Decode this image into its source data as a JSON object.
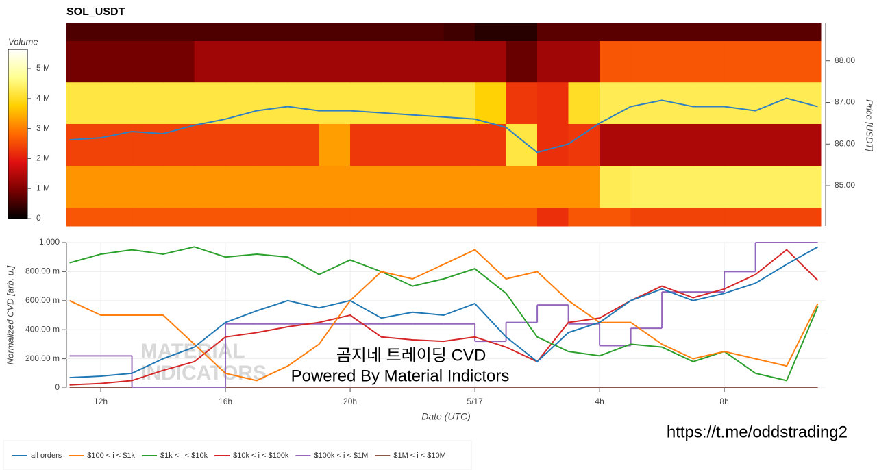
{
  "chart_data": [
    {
      "type": "heatmap",
      "title": "SOL_USDT",
      "x_bins": [
        10.9,
        12,
        13,
        14,
        15,
        16,
        17,
        18,
        19,
        20,
        21,
        22,
        23,
        24,
        25,
        26,
        27,
        28,
        29,
        30,
        31,
        32,
        33,
        34,
        35.1
      ],
      "y_bins": [
        84.03,
        84.47,
        85.48,
        86.49,
        87.49,
        88.48,
        88.9
      ],
      "values": [
        [
          2600000,
          2600000,
          2600000,
          2600000,
          2600000,
          2600000,
          2600000,
          2600000,
          2600000,
          2600000,
          2600000,
          2600000,
          2600000,
          2600000,
          2600000,
          2200000,
          2600000,
          2600000,
          2400000,
          2400000,
          2400000,
          2400000,
          2400000,
          2400000
        ],
        [
          3200000,
          3200000,
          3200000,
          3200000,
          3200000,
          3200000,
          3200000,
          3200000,
          3200000,
          3200000,
          3200000,
          3200000,
          3200000,
          3200000,
          3200000,
          3200000,
          3200000,
          4300000,
          4400000,
          4400000,
          4400000,
          4400000,
          4400000,
          4400000
        ],
        [
          2400000,
          2400000,
          2400000,
          2400000,
          2400000,
          2400000,
          2400000,
          2400000,
          3300000,
          2300000,
          2300000,
          2300000,
          2300000,
          2300000,
          4200000,
          2200000,
          2300000,
          1400000,
          1400000,
          1400000,
          1400000,
          1400000,
          1400000,
          1400000
        ],
        [
          4200000,
          4200000,
          4200000,
          4200000,
          4200000,
          4200000,
          4200000,
          4200000,
          4200000,
          4200000,
          4200000,
          4200000,
          4200000,
          3800000,
          2300000,
          2200000,
          4000000,
          4300000,
          4300000,
          4300000,
          4300000,
          4300000,
          4300000,
          4300000
        ],
        [
          900000,
          900000,
          900000,
          900000,
          1300000,
          1300000,
          1300000,
          1300000,
          1300000,
          1300000,
          1300000,
          1300000,
          1300000,
          1300000,
          800000,
          1300000,
          1300000,
          2600000,
          2600000,
          2600000,
          2600000,
          2600000,
          2600000,
          2600000
        ],
        [
          600000,
          600000,
          600000,
          600000,
          600000,
          600000,
          600000,
          600000,
          600000,
          600000,
          600000,
          600000,
          500000,
          300000,
          300000,
          700000,
          700000,
          700000,
          700000,
          700000,
          700000,
          700000,
          700000,
          700000
        ]
      ],
      "colormap": [
        "#000000",
        "#7a0000",
        "#e01010",
        "#ff6a00",
        "#ffd000",
        "#ffff90",
        "#ffffff"
      ],
      "colorbar_label": "Volume",
      "clim": [
        0,
        5640000
      ],
      "cticks": [
        0,
        {
          "value": 1000000,
          "label": "1 M"
        },
        {
          "value": 2000000,
          "label": "2 M"
        },
        {
          "value": 3000000,
          "label": "3 M"
        },
        {
          "value": 4000000,
          "label": "4 M"
        },
        {
          "value": 5000000,
          "label": "5 M"
        }
      ],
      "xlim": [
        10.9,
        35.1
      ],
      "ylim": [
        84.03,
        88.9
      ],
      "ylabel": "Price [USDT]",
      "yticks": [
        {
          "value": 85,
          "label": "85.00"
        },
        {
          "value": 86,
          "label": "86.00"
        },
        {
          "value": 87,
          "label": "87.00"
        },
        {
          "value": 88,
          "label": "88.00"
        }
      ],
      "line": {
        "color": "#2f7fc1",
        "x": [
          11,
          12,
          13,
          14,
          15,
          16,
          17,
          18,
          19,
          20,
          21,
          22,
          23,
          24,
          25,
          26,
          27,
          28,
          29,
          30,
          31,
          32,
          33,
          34,
          35
        ],
        "values": [
          86.1,
          86.15,
          86.3,
          86.25,
          86.45,
          86.6,
          86.8,
          86.9,
          86.8,
          86.8,
          86.75,
          86.7,
          86.65,
          86.6,
          86.4,
          85.8,
          86.0,
          86.5,
          86.9,
          87.05,
          86.9,
          86.9,
          86.8,
          87.1,
          86.9
        ]
      }
    },
    {
      "type": "line",
      "xlabel": "Date (UTC)",
      "ylabel": "Normalized CVD [arb. u.]",
      "xlim": [
        10.9,
        35.25
      ],
      "ylim": [
        0,
        1
      ],
      "xticks": [
        {
          "value": 12,
          "label": "12h"
        },
        {
          "value": 16,
          "label": "16h"
        },
        {
          "value": 20,
          "label": "20h"
        },
        {
          "value": 24,
          "label": "5/17"
        },
        {
          "value": 28,
          "label": "4h"
        },
        {
          "value": 32,
          "label": "8h"
        }
      ],
      "yticks": [
        0,
        {
          "value": 0.2,
          "label": "200.00 m"
        },
        {
          "value": 0.4,
          "label": "400.00 m"
        },
        {
          "value": 0.6,
          "label": "600.00 m"
        },
        {
          "value": 0.8,
          "label": "800.00 m"
        },
        {
          "value": 1,
          "label": "1.000"
        }
      ],
      "grid": true,
      "legend": "bottom-left",
      "x": [
        11,
        12,
        13,
        14,
        15,
        16,
        17,
        18,
        19,
        20,
        21,
        22,
        23,
        24,
        25,
        26,
        27,
        28,
        29,
        30,
        31,
        32,
        33,
        34,
        35
      ],
      "series": [
        {
          "name": "all orders",
          "color": "#1f77b4",
          "values": [
            0.07,
            0.08,
            0.1,
            0.2,
            0.28,
            0.45,
            0.53,
            0.6,
            0.55,
            0.6,
            0.48,
            0.52,
            0.5,
            0.58,
            0.35,
            0.18,
            0.38,
            0.45,
            0.6,
            0.68,
            0.6,
            0.65,
            0.72,
            0.85,
            0.97
          ]
        },
        {
          "name": "$100 < i < $1k",
          "color": "#ff7f0e",
          "values": [
            0.6,
            0.5,
            0.5,
            0.5,
            0.3,
            0.1,
            0.05,
            0.15,
            0.3,
            0.6,
            0.8,
            0.75,
            0.85,
            0.95,
            0.75,
            0.8,
            0.6,
            0.45,
            0.45,
            0.3,
            0.2,
            0.25,
            0.2,
            0.15,
            0.58
          ]
        },
        {
          "name": "$1k < i < $10k",
          "color": "#2ca02c",
          "values": [
            0.86,
            0.92,
            0.95,
            0.92,
            0.97,
            0.9,
            0.92,
            0.9,
            0.78,
            0.88,
            0.8,
            0.7,
            0.75,
            0.82,
            0.65,
            0.35,
            0.25,
            0.22,
            0.3,
            0.28,
            0.18,
            0.25,
            0.1,
            0.05,
            0.56
          ]
        },
        {
          "name": "$10k < i < $100k",
          "color": "#d62728",
          "values": [
            0.02,
            0.03,
            0.05,
            0.12,
            0.18,
            0.35,
            0.38,
            0.42,
            0.45,
            0.5,
            0.35,
            0.33,
            0.32,
            0.35,
            0.28,
            0.18,
            0.45,
            0.48,
            0.6,
            0.7,
            0.62,
            0.68,
            0.78,
            0.95,
            0.74
          ]
        },
        {
          "name": "$100k < i < $1M",
          "color": "#9467bd",
          "step": true,
          "values": [
            0.22,
            0.22,
            0,
            0,
            0,
            0.44,
            0.44,
            0.44,
            0.44,
            0.44,
            0.44,
            0.44,
            0.44,
            0.32,
            0.45,
            0.57,
            0.44,
            0.29,
            0.41,
            0.66,
            0.66,
            0.8,
            1,
            1,
            1
          ]
        },
        {
          "name": "$1M < i < $10M",
          "color": "#8c564b",
          "values": [
            0,
            0,
            0,
            0,
            0,
            0,
            0,
            0,
            0,
            0,
            0,
            0,
            0,
            0,
            0,
            0,
            0,
            0,
            0,
            0,
            0,
            0,
            0,
            0,
            0
          ]
        }
      ],
      "annotations": [
        "MATERIAL",
        "INDICATORS",
        "곰지네 트레이딩 CVD",
        "Powered By Material Indictors",
        "https://t.me/oddstrading2"
      ]
    }
  ]
}
